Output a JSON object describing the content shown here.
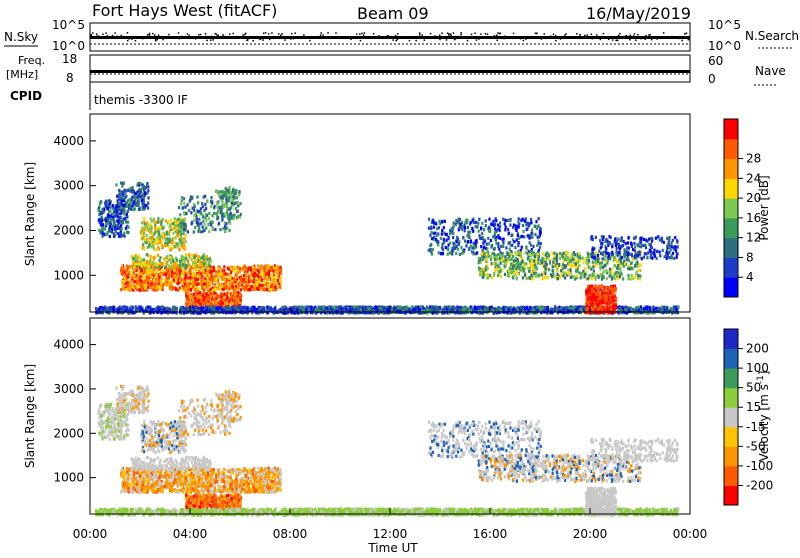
{
  "header": {
    "station": "Fort Hays West (fitACF)",
    "beam": "Beam 09",
    "date": "16/May/2019"
  },
  "panels": {
    "nsky": {
      "left_label": "N.Sky",
      "right_label": "N.Search",
      "left_ticks": [
        "10^5",
        "10^0"
      ],
      "right_ticks": [
        "10^5",
        "10^0"
      ]
    },
    "freq": {
      "left_label_line1": "Freq.",
      "left_label_line2": "[MHz]",
      "right_label": "Nave",
      "left_ticks": [
        "18",
        "8"
      ],
      "right_ticks": [
        "60",
        "0"
      ]
    },
    "cpid": {
      "label": "CPID",
      "text": "themis -3300 IF"
    }
  },
  "colors": {
    "power": [
      "#0000ff",
      "#1e3cc8",
      "#2d6e7f",
      "#3c9b5a",
      "#7fc850",
      "#ffd700",
      "#ff9600",
      "#ff5a00",
      "#ff0000"
    ],
    "velocity": [
      "#ff0000",
      "#ff5a00",
      "#ff9600",
      "#ffc400",
      "#c8c8c8",
      "#8ccd3c",
      "#3c9b5a",
      "#1e64b4",
      "#1e28c8"
    ]
  },
  "chart_data": [
    {
      "type": "heatmap",
      "name": "power",
      "ylabel": "Slant Range [km]",
      "yticks": [
        "1000",
        "2000",
        "3000",
        "4000"
      ],
      "ylim": [
        180,
        4600
      ],
      "colorbar_label": "Power [dB]",
      "colorbar_ticks": [
        "4",
        "8",
        "12",
        "16",
        "20",
        "24",
        "28"
      ],
      "colorbar_range": [
        0,
        32
      ]
    },
    {
      "type": "heatmap",
      "name": "velocity",
      "ylabel": "Slant Range [km]",
      "yticks": [
        "1000",
        "2000",
        "3000",
        "4000"
      ],
      "ylim": [
        180,
        4600
      ],
      "colorbar_label": "Velocity [m s^-1]",
      "colorbar_ticks": [
        "200",
        "100",
        "50",
        "15",
        "-15",
        "-50",
        "-100",
        "-200"
      ]
    }
  ],
  "xaxis": {
    "label": "Time UT",
    "ticks": [
      "00:00",
      "04:00",
      "08:00",
      "12:00",
      "16:00",
      "20:00",
      "00:00"
    ],
    "range_hours": [
      0,
      24
    ]
  }
}
